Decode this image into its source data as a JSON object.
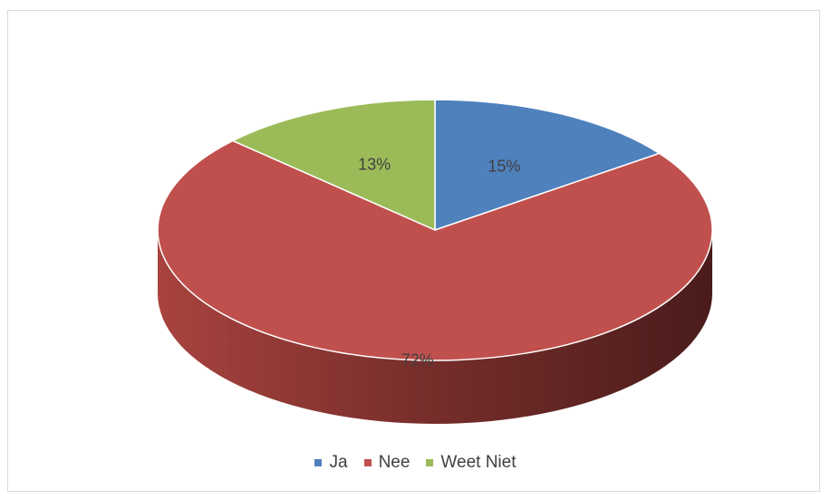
{
  "chart_data": {
    "type": "pie",
    "style": "3d",
    "categories": [
      "Ja",
      "Nee",
      "Weet Niet"
    ],
    "values": [
      15,
      72,
      13
    ],
    "labels": [
      "15%",
      "72%",
      "13%"
    ],
    "colors": [
      "#4f81bd",
      "#c0504d",
      "#9bbb59"
    ],
    "legend_position": "bottom"
  }
}
